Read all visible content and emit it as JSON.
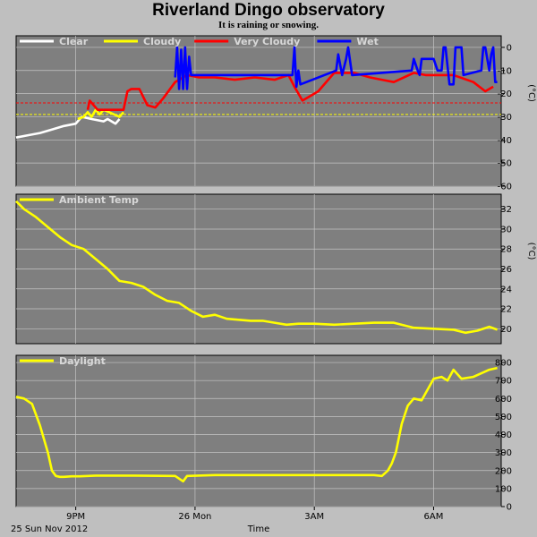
{
  "page": {
    "title": "Riverland Dingo observatory",
    "subtitle": "It is raining or snowing."
  },
  "x_axis": {
    "label": "Time",
    "date_label": "25 Sun Nov 2012",
    "ticks": [
      {
        "t": 1.5,
        "label": "9PM"
      },
      {
        "t": 4.5,
        "label": "26 Mon"
      },
      {
        "t": 7.5,
        "label": "3AM"
      },
      {
        "t": 10.5,
        "label": "6AM"
      }
    ],
    "range_hours": [
      0,
      12.2
    ]
  },
  "colors": {
    "panel_bg": "#7f7f7f",
    "page_bg": "#bfbfbf",
    "grid": "#c4c4c4",
    "clear": "#ffffff",
    "cloudy": "#ffff00",
    "very_cloudy": "#ff0000",
    "wet": "#0000ff",
    "ambient": "#ffff00",
    "daylight": "#ffff00"
  },
  "chart_data": [
    {
      "type": "line",
      "name": "cloud-panel",
      "ylabel": "(°C)",
      "ylim": [
        -60,
        5
      ],
      "yticks": [
        0,
        -10,
        -20,
        -30,
        -40,
        -50,
        -60
      ],
      "grid": true,
      "legend": "top-left",
      "legend_entries": [
        {
          "label": "Clear",
          "color_key": "clear"
        },
        {
          "label": "Cloudy",
          "color_key": "cloudy"
        },
        {
          "label": "Very Cloudy",
          "color_key": "very_cloudy"
        },
        {
          "label": "Wet",
          "color_key": "wet"
        }
      ],
      "thresholds": [
        {
          "value": -24,
          "color_key": "very_cloudy"
        },
        {
          "value": -29,
          "color_key": "cloudy"
        }
      ],
      "series": [
        {
          "name": "Clear",
          "color_key": "clear",
          "x": [
            0,
            0.3,
            0.6,
            0.9,
            1.2,
            1.5,
            1.6,
            1.65,
            1.9,
            2.2,
            2.3,
            2.5,
            2.6
          ],
          "y": [
            -39,
            -38,
            -37,
            -35.5,
            -34,
            -33,
            -31,
            -30,
            -31,
            -32,
            -31,
            -33,
            -31
          ]
        },
        {
          "name": "Cloudy",
          "color_key": "cloudy",
          "x": [
            1.55,
            1.7,
            1.8,
            1.9,
            2.0,
            2.1,
            2.2,
            2.6,
            2.7
          ],
          "y": [
            -31,
            -30,
            -28,
            -30,
            -27,
            -29,
            -27,
            -30,
            -28
          ]
        },
        {
          "name": "Very Cloudy",
          "color_key": "very_cloudy",
          "x": [
            1.8,
            1.85,
            1.95,
            2.05,
            2.7,
            2.8,
            2.9,
            3.1,
            3.3,
            3.5,
            3.7,
            4.0,
            4.2,
            4.3,
            4.6,
            5.0,
            5.5,
            6.0,
            6.5,
            6.85,
            7.0,
            7.2,
            7.4,
            7.6,
            8.0,
            8.5,
            8.9,
            9.2,
            9.5,
            10.0,
            10.3,
            11.0,
            11.5,
            11.8,
            12.0
          ],
          "y": [
            -27,
            -23,
            -25,
            -27,
            -27,
            -19,
            -18,
            -18,
            -25,
            -26,
            -22,
            -15,
            -13,
            -12,
            -13,
            -13,
            -14,
            -13,
            -14,
            -12,
            -17,
            -23,
            -21,
            -19,
            -11,
            -11,
            -13,
            -14,
            -15,
            -11,
            -12,
            -12,
            -15,
            -19,
            -17
          ]
        },
        {
          "name": "Wet",
          "color_key": "wet",
          "x": [
            4.0,
            4.05,
            4.1,
            4.15,
            4.2,
            4.25,
            4.3,
            4.35,
            4.4,
            6.95,
            7.0,
            7.05,
            7.1,
            7.15,
            8.05,
            8.1,
            8.2,
            8.3,
            8.35,
            8.45,
            9.95,
            10.0,
            10.1,
            10.15,
            10.2,
            10.5,
            10.6,
            10.7,
            10.75,
            10.8,
            10.9,
            11.0,
            11.05,
            11.2,
            11.25,
            11.7,
            11.75,
            11.8,
            11.9,
            11.95,
            12.0,
            12.05,
            12.1
          ],
          "y": [
            -13,
            0,
            -18,
            -1,
            -18,
            0,
            -18,
            -4,
            -12,
            -12,
            0,
            -17,
            -10,
            -16,
            -10,
            -3,
            -12,
            -5,
            0,
            -12,
            -10,
            -5,
            -10,
            -12,
            -5,
            -5,
            -10,
            -10,
            0,
            0,
            -16,
            -16,
            0,
            0,
            -12,
            -10,
            0,
            0,
            -10,
            -3,
            0,
            -15,
            -15
          ]
        }
      ]
    },
    {
      "type": "line",
      "name": "ambient-panel",
      "ylabel": "(°C)",
      "ylim": [
        18.5,
        33.5
      ],
      "yticks": [
        20,
        22,
        24,
        26,
        28,
        30,
        32
      ],
      "grid": true,
      "legend": "top-left",
      "legend_entries": [
        {
          "label": "Ambient Temp",
          "color_key": "ambient"
        }
      ],
      "series": [
        {
          "name": "Ambient Temp",
          "color_key": "ambient",
          "x": [
            0,
            0.2,
            0.5,
            0.8,
            1.1,
            1.4,
            1.7,
            2.0,
            2.3,
            2.6,
            2.9,
            3.2,
            3.5,
            3.8,
            4.1,
            4.4,
            4.7,
            5.0,
            5.3,
            5.6,
            5.9,
            6.2,
            6.5,
            6.8,
            7.1,
            7.5,
            8.0,
            8.5,
            9.0,
            9.5,
            10.0,
            10.5,
            11.0,
            11.3,
            11.6,
            11.9,
            12.1
          ],
          "y": [
            32.8,
            32.0,
            31.2,
            30.2,
            29.2,
            28.4,
            28.0,
            27.0,
            26.0,
            24.8,
            24.6,
            24.2,
            23.4,
            22.8,
            22.6,
            21.8,
            21.2,
            21.4,
            21.0,
            20.9,
            20.8,
            20.8,
            20.6,
            20.4,
            20.5,
            20.5,
            20.4,
            20.5,
            20.6,
            20.6,
            20.1,
            20.0,
            19.9,
            19.6,
            19.8,
            20.2,
            19.9
          ]
        }
      ]
    },
    {
      "type": "line",
      "name": "daylight-panel",
      "ylabel": "",
      "ylim": [
        0,
        840
      ],
      "yticks": [
        0,
        100,
        200,
        300,
        400,
        500,
        600,
        700,
        800
      ],
      "grid": true,
      "legend": "top-left",
      "legend_entries": [
        {
          "label": "Daylight",
          "color_key": "daylight"
        }
      ],
      "series": [
        {
          "name": "Daylight",
          "color_key": "daylight",
          "x": [
            0,
            0.2,
            0.4,
            0.6,
            0.8,
            0.9,
            1.0,
            1.1,
            1.2,
            1.4,
            1.6,
            2.0,
            3.0,
            4.0,
            4.2,
            4.3,
            5.0,
            6.0,
            7.0,
            8.0,
            9.0,
            9.2,
            9.35,
            9.45,
            9.55,
            9.7,
            9.85,
            10.0,
            10.2,
            10.5,
            10.7,
            10.85,
            11.0,
            11.2,
            11.5,
            11.7,
            11.9,
            12.1
          ],
          "y": [
            610,
            600,
            570,
            450,
            300,
            200,
            170,
            165,
            165,
            168,
            168,
            172,
            172,
            170,
            140,
            170,
            175,
            175,
            175,
            175,
            175,
            170,
            200,
            240,
            300,
            460,
            560,
            600,
            590,
            710,
            720,
            700,
            760,
            710,
            720,
            740,
            760,
            770
          ]
        }
      ]
    }
  ]
}
